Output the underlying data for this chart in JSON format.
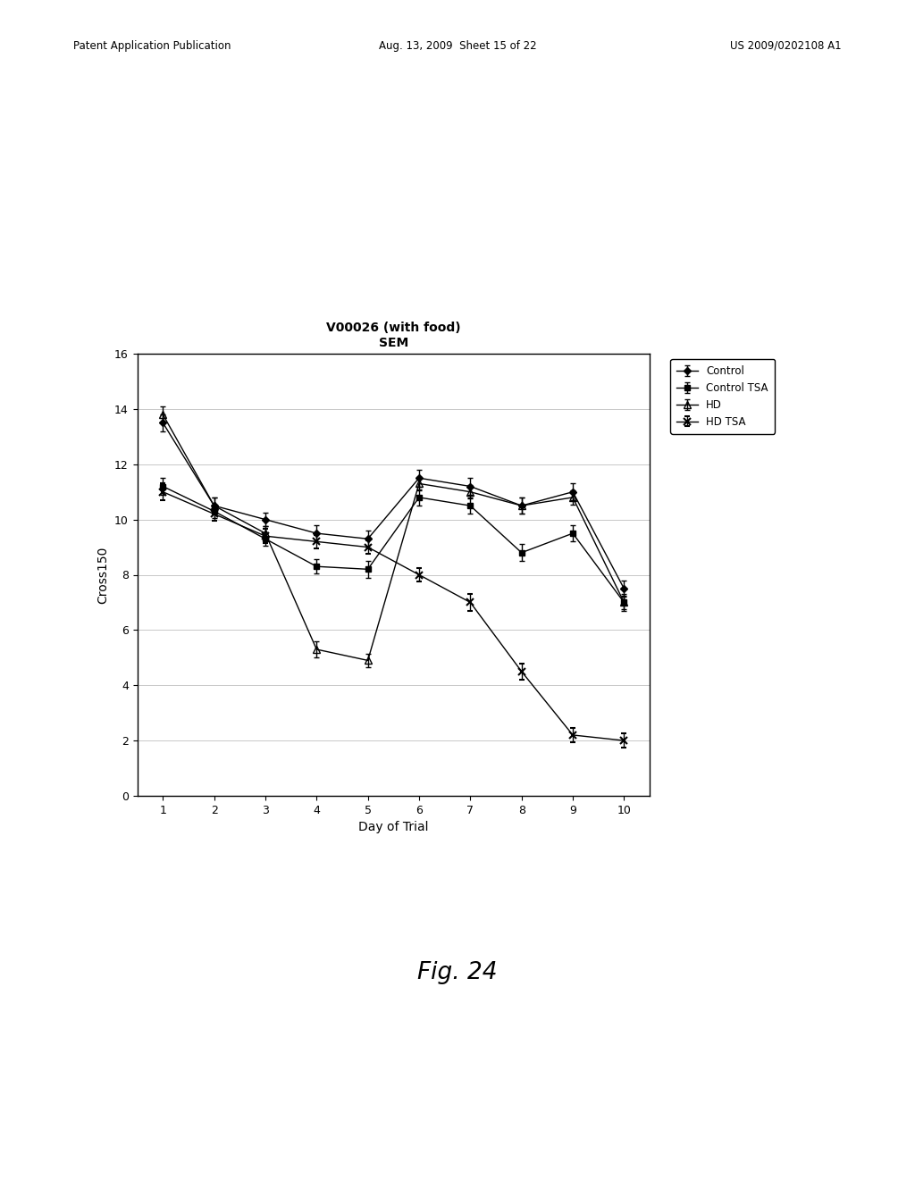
{
  "title_line1": "V00026 (with food)",
  "title_line2": "SEM",
  "xlabel": "Day of Trial",
  "ylabel": "Cross150",
  "xlim": [
    0.5,
    10.5
  ],
  "ylim": [
    0,
    16
  ],
  "yticks": [
    0,
    2,
    4,
    6,
    8,
    10,
    12,
    14,
    16
  ],
  "xticks": [
    1,
    2,
    3,
    4,
    5,
    6,
    7,
    8,
    9,
    10
  ],
  "days": [
    1,
    2,
    3,
    4,
    5,
    6,
    7,
    8,
    9,
    10
  ],
  "Control_y": [
    13.5,
    10.5,
    10.0,
    9.5,
    9.3,
    11.5,
    11.2,
    10.5,
    11.0,
    7.5
  ],
  "Control_yerr": [
    0.3,
    0.3,
    0.25,
    0.3,
    0.3,
    0.3,
    0.3,
    0.3,
    0.3,
    0.3
  ],
  "ControlTSA_y": [
    11.2,
    10.3,
    9.3,
    8.3,
    8.2,
    10.8,
    10.5,
    8.8,
    9.5,
    7.0
  ],
  "ControlTSA_yerr": [
    0.3,
    0.25,
    0.25,
    0.25,
    0.3,
    0.3,
    0.3,
    0.3,
    0.3,
    0.25
  ],
  "HD_y": [
    13.8,
    10.5,
    9.5,
    5.3,
    4.9,
    11.3,
    11.0,
    10.5,
    10.8,
    7.0
  ],
  "HD_yerr": [
    0.3,
    0.3,
    0.25,
    0.3,
    0.25,
    0.25,
    0.25,
    0.3,
    0.25,
    0.3
  ],
  "HDTSA_y": [
    11.0,
    10.2,
    9.4,
    9.2,
    9.0,
    8.0,
    7.0,
    4.5,
    2.2,
    2.0
  ],
  "HDTSA_yerr": [
    0.3,
    0.25,
    0.25,
    0.25,
    0.25,
    0.25,
    0.3,
    0.3,
    0.25,
    0.25
  ],
  "header_left": "Patent Application Publication",
  "header_mid": "Aug. 13, 2009  Sheet 15 of 22",
  "header_right": "US 2009/0202108 A1",
  "footer": "Fig. 24",
  "fig_width": 10.24,
  "fig_height": 13.2,
  "background_color": "#ffffff"
}
